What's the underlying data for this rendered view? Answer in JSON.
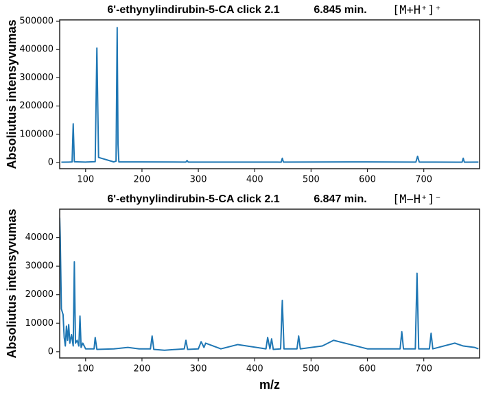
{
  "chart_data": [
    {
      "type": "line",
      "title": "6'-ethynylindirubin-5-CA click 2.1",
      "time": "6.845 min.",
      "ion": "[M+H⁺]⁺",
      "ylabel": "Absoliutus intensyvumas",
      "xlim": [
        54,
        799
      ],
      "ylim": [
        -22000,
        505000
      ],
      "xticks": [
        100,
        200,
        300,
        400,
        500,
        600,
        700
      ],
      "yticks": [
        0,
        100000,
        200000,
        300000,
        400000,
        500000
      ],
      "series": [
        {
          "color": "#1f77b4",
          "x": [
            57,
            70,
            76,
            78,
            80,
            100,
            117,
            120,
            123,
            150,
            154,
            156,
            157.5,
            159,
            200,
            278,
            280,
            282,
            440,
            447,
            449,
            451,
            600,
            686,
            689,
            692,
            760,
            768,
            770,
            772,
            797
          ],
          "values": [
            1000,
            1500,
            2000,
            137000,
            2500,
            1500,
            3000,
            405000,
            18000,
            2000,
            5000,
            478000,
            65000,
            2000,
            2000,
            1500,
            7000,
            1500,
            1500,
            1000,
            15000,
            1500,
            2000,
            1500,
            22000,
            1500,
            1000,
            1000,
            15000,
            1000,
            1500
          ]
        }
      ]
    },
    {
      "type": "line",
      "title": "6'-ethynylindirubin-5-CA click 2.1",
      "time": "6.847 min.",
      "ion": "[M−H⁺]⁻",
      "xlabel": "m/z",
      "ylabel": "Absoliutus intensyvumas",
      "xlim": [
        54,
        799
      ],
      "ylim": [
        -2200,
        50000
      ],
      "xticks": [
        100,
        200,
        300,
        400,
        500,
        600,
        700
      ],
      "yticks": [
        0,
        10000,
        20000,
        30000,
        40000
      ],
      "series": [
        {
          "color": "#1f77b4",
          "x": [
            54,
            55,
            57,
            60,
            62,
            64,
            66,
            68,
            70,
            72,
            75,
            78,
            80,
            82,
            85,
            88,
            90,
            92,
            95,
            100,
            115,
            117,
            120,
            150,
            175,
            195,
            215,
            218,
            221,
            240,
            275,
            278,
            281,
            300,
            305,
            310,
            313,
            340,
            370,
            420,
            423,
            427,
            430,
            433,
            446,
            449,
            452,
            475,
            478,
            481,
            520,
            540,
            600,
            658,
            661,
            664,
            685,
            688,
            691,
            710,
            713,
            716,
            755,
            770,
            790,
            797
          ],
          "values": [
            47000,
            40000,
            15000,
            13000,
            5000,
            2000,
            9000,
            4000,
            9500,
            3000,
            6000,
            2000,
            31500,
            3000,
            4000,
            2000,
            12500,
            1500,
            3000,
            1000,
            1000,
            5000,
            800,
            1000,
            1500,
            1000,
            1000,
            5500,
            800,
            500,
            1000,
            4000,
            800,
            1000,
            3500,
            1500,
            3000,
            1000,
            2500,
            1000,
            5000,
            1000,
            4500,
            800,
            1000,
            18000,
            1000,
            1000,
            5500,
            1000,
            2000,
            4000,
            1000,
            1000,
            7000,
            1000,
            1000,
            27500,
            1000,
            1000,
            6500,
            1000,
            3000,
            2000,
            1500,
            1000
          ]
        }
      ]
    }
  ]
}
